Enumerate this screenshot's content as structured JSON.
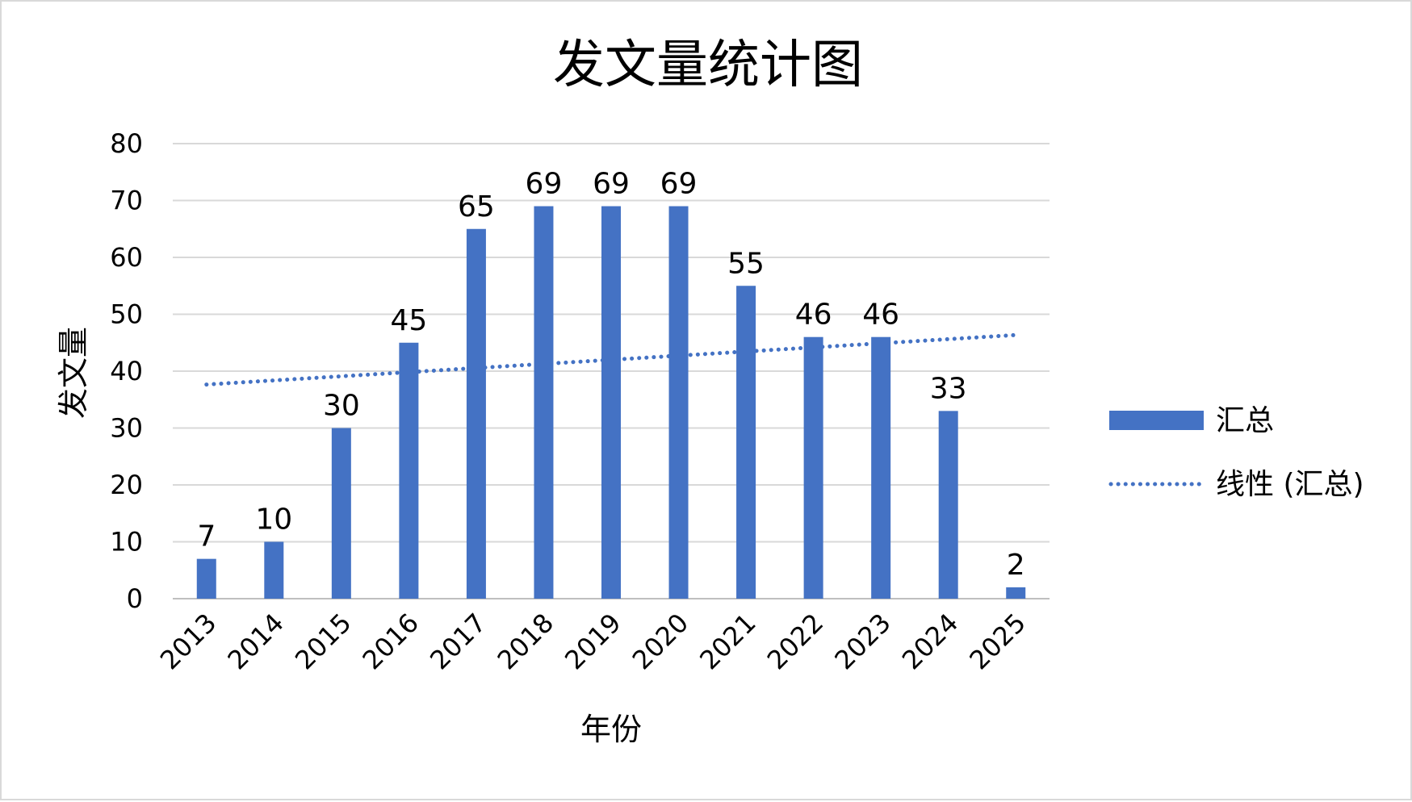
{
  "chart_data": {
    "type": "bar",
    "title": "发文量统计图",
    "xlabel": "年份",
    "ylabel": "发文量",
    "categories": [
      "2013",
      "2014",
      "2015",
      "2016",
      "2017",
      "2018",
      "2019",
      "2020",
      "2021",
      "2022",
      "2023",
      "2024",
      "2025"
    ],
    "series": [
      {
        "name": "汇总",
        "values": [
          7,
          10,
          30,
          45,
          65,
          69,
          69,
          69,
          55,
          46,
          46,
          33,
          2
        ],
        "color": "#4472C4"
      }
    ],
    "trendline": {
      "name": "线性 (汇总)",
      "type": "linear",
      "style": "dotted",
      "color": "#4472C4"
    },
    "ylim": [
      0,
      80
    ],
    "yticks": [
      0,
      10,
      20,
      30,
      40,
      50,
      60,
      70,
      80
    ],
    "grid": true,
    "legend_position": "right",
    "data_labels": true
  }
}
